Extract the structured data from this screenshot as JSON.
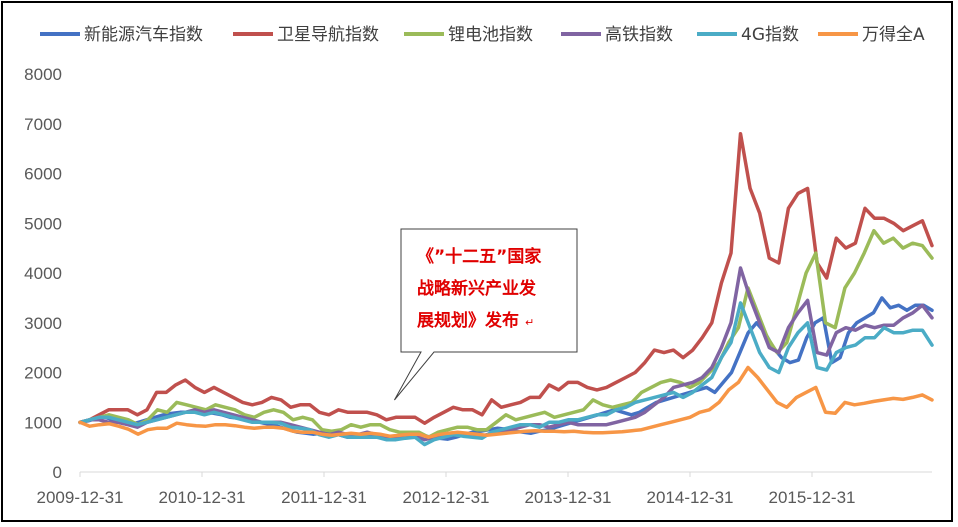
{
  "chart_data": {
    "type": "line",
    "title": "",
    "xlabel": "",
    "ylabel": "",
    "ylim": [
      0,
      8000
    ],
    "y_ticks": [
      0,
      1000,
      2000,
      3000,
      4000,
      5000,
      6000,
      7000,
      8000
    ],
    "x_tick_labels": [
      "2009-12-31",
      "2010-12-31",
      "2011-12-31",
      "2012-12-31",
      "2013-12-31",
      "2014-12-31",
      "2015-12-31"
    ],
    "grid": false,
    "legend_position": "top",
    "annotation": {
      "lines": [
        "《”十二五”国家",
        "战略新兴产业发",
        "展规划》发布"
      ],
      "return_mark": "↵",
      "target_date": "2012-07"
    },
    "x_start": "2009-12",
    "x_end": "2016-12",
    "x_step": "1 month",
    "series": [
      {
        "name": "新能源汽车指数",
        "color": "#4472c4",
        "values": [
          1000,
          1030,
          1080,
          1100,
          1050,
          980,
          950,
          1000,
          1050,
          1100,
          1150,
          1180,
          1200,
          1200,
          1220,
          1200,
          1180,
          1150,
          1100,
          1080,
          1050,
          1020,
          980,
          950,
          900,
          850,
          800,
          780,
          760,
          780,
          820,
          750,
          700,
          720,
          740,
          750,
          720,
          690,
          680,
          700,
          720,
          740,
          700,
          680,
          660,
          700,
          750,
          800,
          820,
          850,
          880,
          860,
          820,
          800,
          780,
          820,
          850,
          900,
          950,
          1000,
          1050,
          1100,
          1150,
          1200,
          1250,
          1200,
          1150,
          1200,
          1300,
          1400,
          1450,
          1500,
          1550,
          1600,
          1650,
          1700,
          1600,
          1800,
          2000,
          2400,
          2800,
          3000,
          2800,
          2500,
          2300,
          2200,
          2250,
          2700,
          3000,
          3100,
          2200,
          2300,
          2800,
          3000,
          3100,
          3200,
          3500,
          3300,
          3350,
          3250,
          3350,
          3350,
          3250
        ]
      },
      {
        "name": "卫星导航指数",
        "color": "#c0504d",
        "values": [
          1000,
          1050,
          1150,
          1250,
          1250,
          1250,
          1150,
          1250,
          1600,
          1600,
          1750,
          1850,
          1700,
          1600,
          1700,
          1600,
          1500,
          1400,
          1350,
          1400,
          1500,
          1450,
          1300,
          1350,
          1350,
          1200,
          1150,
          1250,
          1200,
          1200,
          1200,
          1150,
          1050,
          1100,
          1100,
          1100,
          980,
          1100,
          1200,
          1300,
          1250,
          1250,
          1150,
          1450,
          1300,
          1350,
          1400,
          1500,
          1500,
          1750,
          1650,
          1800,
          1800,
          1700,
          1650,
          1700,
          1800,
          1900,
          2000,
          2200,
          2450,
          2400,
          2450,
          2300,
          2450,
          2700,
          3000,
          3800,
          4400,
          6800,
          5700,
          5200,
          4300,
          4200,
          5300,
          5600,
          5700,
          4200,
          3900,
          4700,
          4500,
          4600,
          5300,
          5100,
          5100,
          5000,
          4850,
          4950,
          5050,
          4550
        ]
      },
      {
        "name": "锂电池指数",
        "color": "#9bbb59",
        "values": [
          1000,
          1050,
          1100,
          1150,
          1100,
          1050,
          950,
          1050,
          1250,
          1200,
          1400,
          1350,
          1300,
          1250,
          1350,
          1300,
          1250,
          1150,
          1100,
          1200,
          1250,
          1200,
          1050,
          1100,
          1050,
          850,
          820,
          850,
          950,
          900,
          950,
          950,
          850,
          800,
          800,
          800,
          700,
          800,
          850,
          900,
          900,
          850,
          850,
          1000,
          1150,
          1050,
          1100,
          1150,
          1200,
          1100,
          1150,
          1200,
          1250,
          1450,
          1350,
          1300,
          1350,
          1400,
          1600,
          1700,
          1800,
          1850,
          1800,
          1700,
          1800,
          2000,
          2200,
          2600,
          2900,
          3700,
          3200,
          2700,
          2400,
          2600,
          3300,
          4000,
          4400,
          3000,
          2900,
          3700,
          4000,
          4400,
          4850,
          4600,
          4700,
          4500,
          4600,
          4550,
          4300
        ]
      },
      {
        "name": "高铁指数",
        "color": "#8064a2",
        "values": [
          1000,
          1050,
          1050,
          1000,
          1000,
          950,
          900,
          1000,
          1050,
          1100,
          1150,
          1200,
          1250,
          1200,
          1250,
          1200,
          1150,
          1100,
          1050,
          1000,
          1000,
          1000,
          950,
          900,
          850,
          800,
          750,
          800,
          750,
          750,
          800,
          750,
          700,
          720,
          740,
          720,
          650,
          700,
          750,
          780,
          760,
          740,
          720,
          780,
          800,
          850,
          900,
          950,
          950,
          900,
          950,
          1000,
          950,
          950,
          950,
          950,
          1000,
          1050,
          1100,
          1200,
          1350,
          1500,
          1700,
          1750,
          1800,
          1900,
          2100,
          2500,
          3000,
          4100,
          3500,
          3000,
          2500,
          2400,
          2900,
          3200,
          3450,
          2400,
          2350,
          2800,
          2900,
          2850,
          2950,
          2900,
          2950,
          2950,
          3100,
          3200,
          3350,
          3100
        ]
      },
      {
        "name": "4G指数",
        "color": "#4bacc6",
        "values": [
          1000,
          1050,
          1100,
          1100,
          1050,
          1000,
          950,
          1000,
          1050,
          1100,
          1150,
          1200,
          1200,
          1150,
          1200,
          1150,
          1100,
          1050,
          1000,
          1000,
          1000,
          980,
          900,
          880,
          850,
          750,
          700,
          750,
          700,
          700,
          700,
          700,
          650,
          650,
          680,
          700,
          550,
          650,
          700,
          750,
          720,
          700,
          680,
          800,
          850,
          900,
          950,
          950,
          900,
          1000,
          1000,
          1050,
          1050,
          1100,
          1150,
          1150,
          1250,
          1300,
          1400,
          1450,
          1500,
          1550,
          1600,
          1500,
          1600,
          1750,
          1900,
          2300,
          2600,
          3400,
          2900,
          2400,
          2100,
          2000,
          2500,
          2800,
          3000,
          2100,
          2050,
          2400,
          2500,
          2550,
          2700,
          2700,
          2900,
          2800,
          2800,
          2850,
          2850,
          2550
        ]
      },
      {
        "name": "万得全A",
        "color": "#f79646",
        "values": [
          1000,
          920,
          950,
          970,
          920,
          860,
          760,
          850,
          880,
          880,
          980,
          950,
          930,
          920,
          950,
          950,
          930,
          900,
          880,
          900,
          900,
          880,
          820,
          800,
          800,
          760,
          740,
          760,
          780,
          760,
          780,
          760,
          720,
          740,
          760,
          760,
          700,
          750,
          780,
          800,
          780,
          760,
          740,
          760,
          780,
          800,
          820,
          830,
          820,
          820,
          810,
          820,
          800,
          790,
          790,
          800,
          810,
          830,
          850,
          900,
          950,
          1000,
          1050,
          1100,
          1200,
          1250,
          1400,
          1650,
          1800,
          2100,
          1900,
          1650,
          1400,
          1300,
          1500,
          1600,
          1700,
          1200,
          1180,
          1400,
          1350,
          1380,
          1420,
          1450,
          1480,
          1460,
          1500,
          1550,
          1450
        ]
      }
    ]
  }
}
